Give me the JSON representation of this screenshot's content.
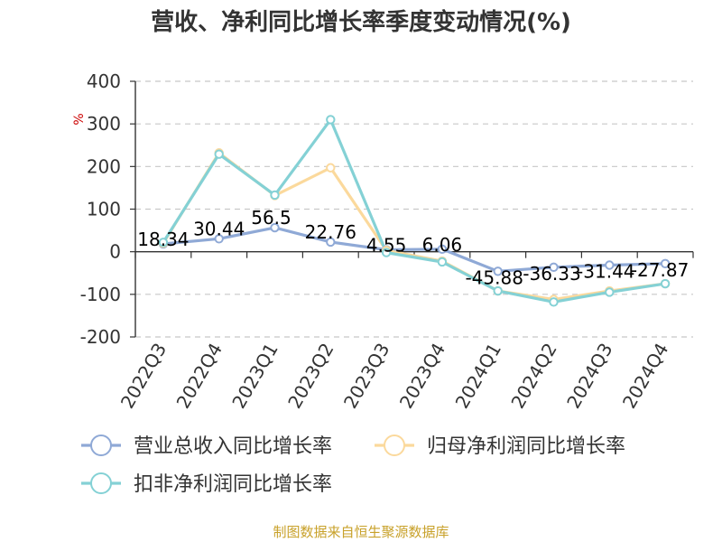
{
  "chart_data": {
    "type": "line",
    "title": "营收、净利同比增长率季度变动情况(%)",
    "ylabel": "%",
    "xlabel": "",
    "ylim": [
      -200,
      400
    ],
    "yticks": [
      400,
      300,
      200,
      100,
      0,
      -100,
      -200
    ],
    "grid": true,
    "legend_position": "bottom",
    "categories": [
      "2022Q3",
      "2022Q4",
      "2023Q1",
      "2023Q2",
      "2023Q3",
      "2023Q4",
      "2024Q1",
      "2024Q2",
      "2024Q3",
      "2024Q4"
    ],
    "series": [
      {
        "name": "营业总收入同比增长率",
        "color": "#8fa9d6",
        "values": [
          18.34,
          30.44,
          56.5,
          22.76,
          4.55,
          6.06,
          -45.88,
          -36.33,
          -31.44,
          -27.87
        ],
        "labels": [
          "18.34",
          "30.44",
          "56.5",
          "22.76",
          "4.55",
          "6.06",
          "-45.88",
          "-36.33",
          "-31.44",
          "-27.87"
        ]
      },
      {
        "name": "归母净利润同比增长率",
        "color": "#fbd99c",
        "values": [
          20,
          232,
          132,
          197,
          3,
          -22,
          -92,
          -112,
          -92,
          -75
        ]
      },
      {
        "name": "扣非净利润同比增长率",
        "color": "#84d1d5",
        "values": [
          22,
          229,
          133,
          310,
          -2,
          -24,
          -92,
          -118,
          -95,
          -75
        ]
      }
    ]
  },
  "source": "制图数据来自恒生聚源数据库"
}
